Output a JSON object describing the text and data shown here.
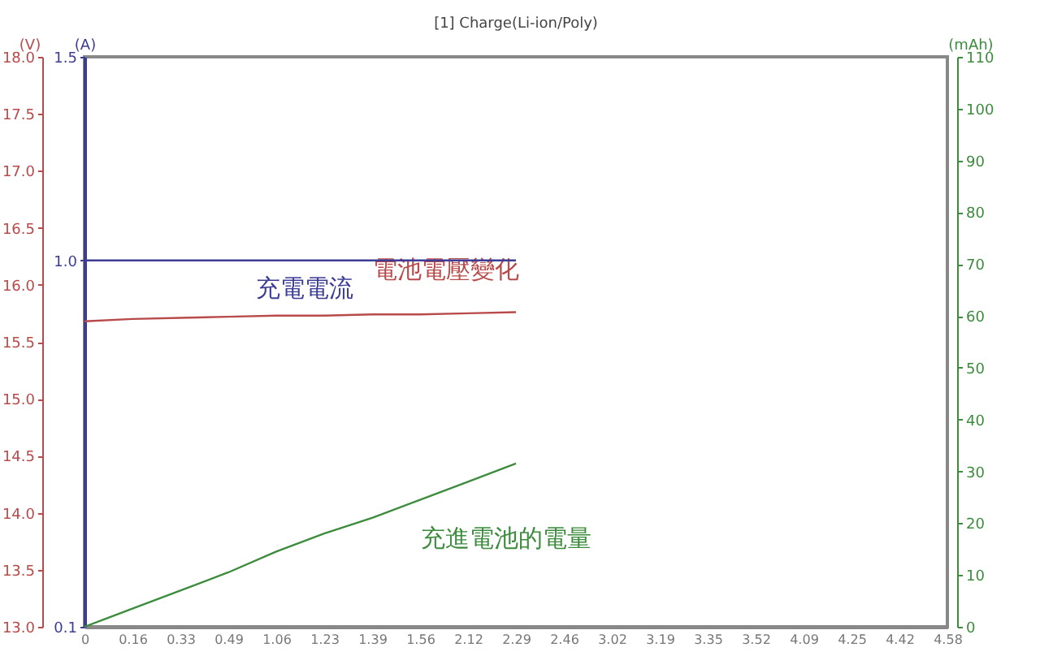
{
  "chart_data": {
    "type": "line",
    "title": "[1] Charge(Li-ion/Poly)",
    "ylabel": "(V)",
    "y2label": "(A)",
    "y3label": "(mAh)",
    "categories": [
      "0",
      "0.16",
      "0.33",
      "0.49",
      "1.06",
      "1.23",
      "1.39",
      "1.56",
      "2.12",
      "2.29",
      "2.46",
      "3.02",
      "3.19",
      "3.35",
      "3.52",
      "4.09",
      "4.25",
      "4.42",
      "4.58"
    ],
    "ylim": [
      13.0,
      18.0
    ],
    "yticks": [
      {
        "value": 13,
        "label": "13.0"
      },
      13.5,
      {
        "value": 14,
        "label": "14.0"
      },
      14.5,
      {
        "value": 15,
        "label": "15.0"
      },
      15.5,
      {
        "value": 16,
        "label": "16.0"
      },
      16.5,
      {
        "value": 17,
        "label": "17.0"
      },
      17.5,
      {
        "value": 18,
        "label": "18.0"
      }
    ],
    "y2lim": [
      0.1,
      1.5
    ],
    "y2ticks": [
      0.1,
      {
        "value": 1,
        "label": "1.0"
      },
      1.5
    ],
    "y3lim": [
      0,
      110
    ],
    "y3ticks": [
      0,
      10,
      20,
      30,
      40,
      50,
      60,
      70,
      80,
      90,
      100,
      110
    ],
    "grid": false,
    "marker": "none",
    "series": [
      {
        "name": "電池電壓變化",
        "color": "#b84a4a",
        "values": [
          15.68,
          15.7,
          15.71,
          15.72,
          15.73,
          15.73,
          15.74,
          15.74,
          15.75,
          15.76,
          null,
          null,
          null,
          null,
          null,
          null,
          null,
          null,
          null
        ]
      },
      {
        "name": "充電電流",
        "color": "#3c3c96",
        "axis": "y2",
        "values": [
          1.0,
          1.0,
          1.0,
          1.0,
          1.0,
          1.0,
          1.0,
          1.0,
          1.0,
          1.0,
          null,
          null,
          null,
          null,
          null,
          null,
          null,
          null,
          null
        ]
      },
      {
        "name": "充進電池的電量",
        "color": "#3d8c3d",
        "axis": "y3",
        "values": [
          0,
          3.5,
          7,
          10.5,
          14.5,
          18,
          21,
          24.5,
          28,
          31.5,
          null,
          null,
          null,
          null,
          null,
          null,
          null,
          null,
          null
        ]
      }
    ]
  }
}
